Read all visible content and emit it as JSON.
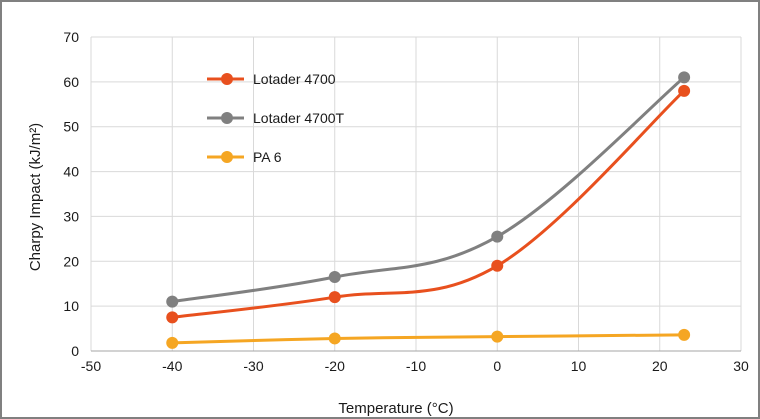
{
  "chart_data": {
    "type": "line",
    "title": "",
    "xlabel": "Temperature (°C)",
    "ylabel": "Charpy Impact (kJ/m²)",
    "xlim": [
      -50,
      30
    ],
    "ylim": [
      0,
      70
    ],
    "xticks": [
      "-50",
      "-40",
      "-30",
      "-20",
      "-10",
      "0",
      "10",
      "20",
      "30"
    ],
    "yticks": [
      "0",
      "10",
      "20",
      "30",
      "40",
      "50",
      "60",
      "70"
    ],
    "grid": "vertical and horizontal",
    "smooth": true,
    "legend": "upper-left inside plot",
    "x": [
      -40,
      -20,
      0,
      23
    ],
    "series": [
      {
        "name": "Lotader 4700",
        "color": "#e8501e",
        "values": [
          7.5,
          12,
          19,
          58
        ]
      },
      {
        "name": "Lotader 4700T",
        "color": "#808080",
        "values": [
          11,
          16.5,
          25.5,
          61
        ]
      },
      {
        "name": "PA 6",
        "color": "#f5a623",
        "values": [
          1.8,
          2.8,
          3.2,
          3.6
        ]
      }
    ]
  }
}
